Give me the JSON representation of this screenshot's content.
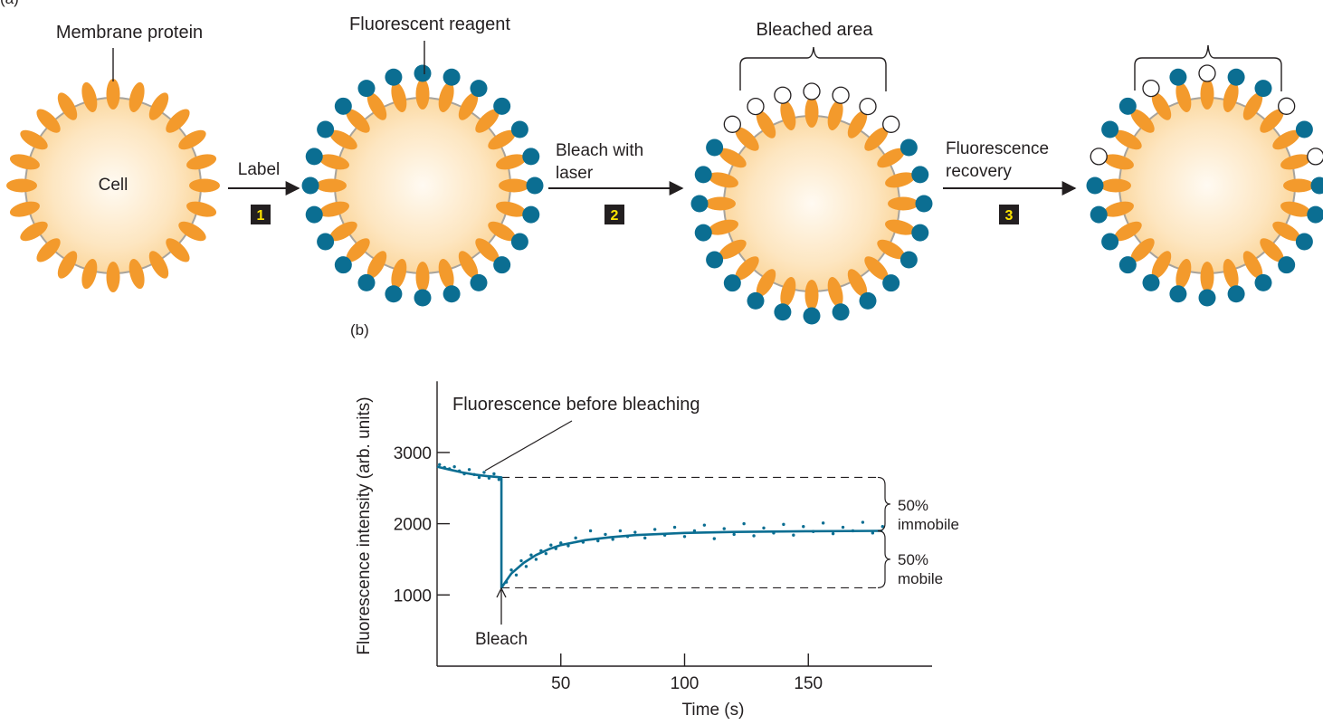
{
  "panel_a": {
    "label": "(a)",
    "cell_label": "Cell",
    "membrane_protein_label": "Membrane protein",
    "fluorescent_reagent_label": "Fluorescent reagent",
    "bleached_area_label": "Bleached area",
    "steps": [
      {
        "number": "1",
        "lines": [
          "Label"
        ]
      },
      {
        "number": "2",
        "lines": [
          "Bleach with",
          "laser"
        ]
      },
      {
        "number": "3",
        "lines": [
          "Fluorescence",
          "recovery"
        ]
      }
    ],
    "colors": {
      "protein": "#f39a2c",
      "reagent": "#0b6e92",
      "membrane": "#a7a39c",
      "cell_center": "#fffaf2",
      "cell_edge": "#fcd8a0",
      "step_box": "#231f20",
      "step_number": "#ffe500"
    }
  },
  "panel_b": {
    "label": "(b)",
    "annotation_before": "Fluorescence before bleaching",
    "annotation_bleach": "Bleach",
    "immobile_label": [
      "50%",
      "immobile"
    ],
    "mobile_label": [
      "50%",
      "mobile"
    ],
    "chart_data": {
      "type": "scatter",
      "xlabel": "Time (s)",
      "ylabel": "Fluorescence intensity (arb. units)",
      "xlim": [
        0,
        200
      ],
      "ylim": [
        0,
        4000
      ],
      "x_ticks": [
        50,
        100,
        150
      ],
      "y_ticks": [
        1000,
        2000,
        3000
      ],
      "grid": false,
      "bleach_time": 26,
      "prebleach_level": 2650,
      "postbleach_minimum": 1100,
      "plateau_level": 1900,
      "series": [
        {
          "type": "line",
          "points": [
            [
              0,
              2800
            ],
            [
              5,
              2760
            ],
            [
              10,
              2720
            ],
            [
              15,
              2690
            ],
            [
              20,
              2670
            ],
            [
              26,
              2650
            ],
            [
              26,
              1100
            ],
            [
              30,
              1300
            ],
            [
              35,
              1450
            ],
            [
              40,
              1560
            ],
            [
              45,
              1640
            ],
            [
              50,
              1700
            ],
            [
              60,
              1770
            ],
            [
              70,
              1810
            ],
            [
              80,
              1840
            ],
            [
              100,
              1870
            ],
            [
              120,
              1885
            ],
            [
              150,
              1895
            ],
            [
              180,
              1900
            ]
          ]
        },
        {
          "type": "scatter",
          "points": [
            [
              1,
              2830
            ],
            [
              3,
              2790
            ],
            [
              5,
              2770
            ],
            [
              7,
              2800
            ],
            [
              9,
              2740
            ],
            [
              11,
              2700
            ],
            [
              13,
              2760
            ],
            [
              15,
              2690
            ],
            [
              17,
              2650
            ],
            [
              19,
              2720
            ],
            [
              21,
              2640
            ],
            [
              23,
              2700
            ],
            [
              25,
              2620
            ],
            [
              28,
              1180
            ],
            [
              30,
              1350
            ],
            [
              32,
              1280
            ],
            [
              34,
              1480
            ],
            [
              36,
              1400
            ],
            [
              38,
              1560
            ],
            [
              40,
              1500
            ],
            [
              42,
              1620
            ],
            [
              44,
              1580
            ],
            [
              46,
              1700
            ],
            [
              48,
              1650
            ],
            [
              50,
              1730
            ],
            [
              53,
              1690
            ],
            [
              56,
              1800
            ],
            [
              59,
              1740
            ],
            [
              62,
              1900
            ],
            [
              65,
              1760
            ],
            [
              68,
              1850
            ],
            [
              71,
              1780
            ],
            [
              74,
              1900
            ],
            [
              77,
              1820
            ],
            [
              80,
              1880
            ],
            [
              84,
              1800
            ],
            [
              88,
              1920
            ],
            [
              92,
              1840
            ],
            [
              96,
              1950
            ],
            [
              100,
              1820
            ],
            [
              104,
              1900
            ],
            [
              108,
              1980
            ],
            [
              112,
              1790
            ],
            [
              116,
              1930
            ],
            [
              120,
              1850
            ],
            [
              124,
              2000
            ],
            [
              128,
              1830
            ],
            [
              132,
              1940
            ],
            [
              136,
              1870
            ],
            [
              140,
              1990
            ],
            [
              144,
              1840
            ],
            [
              148,
              1960
            ],
            [
              152,
              1890
            ],
            [
              156,
              2010
            ],
            [
              160,
              1860
            ],
            [
              164,
              1950
            ],
            [
              168,
              1900
            ],
            [
              172,
              2020
            ],
            [
              176,
              1870
            ],
            [
              180,
              1960
            ]
          ]
        }
      ]
    }
  }
}
